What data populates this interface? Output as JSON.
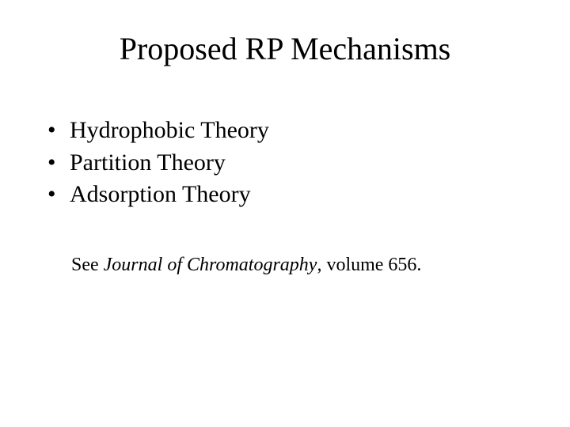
{
  "title": "Proposed RP Mechanisms",
  "bullets": {
    "item0": "Hydrophobic Theory",
    "item1": "Partition Theory",
    "item2": "Adsorption Theory"
  },
  "reference": {
    "prefix": "See ",
    "journal": "Journal of Chromatography",
    "suffix": ", volume 656."
  },
  "styling": {
    "background_color": "#ffffff",
    "text_color": "#000000",
    "font_family": "Times New Roman",
    "title_fontsize": 40,
    "bullet_fontsize": 30,
    "reference_fontsize": 24
  }
}
